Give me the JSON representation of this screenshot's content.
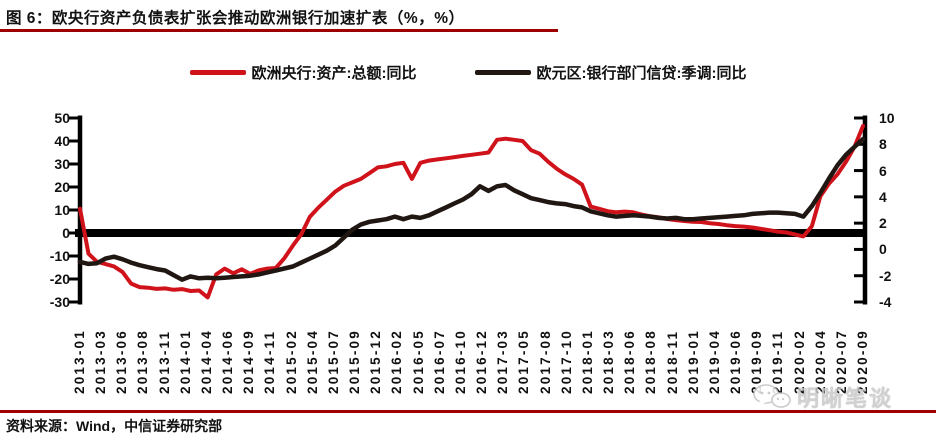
{
  "title": "图 6：欧央行资产负债表扩张会推动欧洲银行加速扩表（%，%）",
  "source": "资料来源：Wind，中信证券研究部",
  "watermark": "明晰笔谈",
  "colors": {
    "accent_rule": "#9e0000",
    "series_red": "#d0121b",
    "series_black": "#201713",
    "zero_line": "#000000",
    "axis": "#000000"
  },
  "legend": {
    "items": [
      {
        "label": "欧洲央行:资产:总额:同比",
        "color": "#d0121b"
      },
      {
        "label": "欧元区:银行部门信贷:季调:同比",
        "color": "#201713"
      }
    ]
  },
  "chart_data": {
    "type": "line",
    "x_start": "2013-01",
    "x_end": "2020-09",
    "frequency": "monthly",
    "n_points": 93,
    "x_tick_labels": [
      "2013-01",
      "2013-03",
      "2013-06",
      "2013-08",
      "2013-11",
      "2014-01",
      "2014-04",
      "2014-06",
      "2014-09",
      "2014-11",
      "2015-02",
      "2015-04",
      "2015-07",
      "2015-09",
      "2015-12",
      "2016-02",
      "2016-05",
      "2016-07",
      "2016-10",
      "2016-12",
      "2017-03",
      "2017-05",
      "2017-08",
      "2017-10",
      "2018-01",
      "2018-03",
      "2018-06",
      "2018-08",
      "2018-11",
      "2019-01",
      "2019-04",
      "2019-06",
      "2019-09",
      "2019-11",
      "2020-02",
      "2020-04",
      "2020-07",
      "2020-09"
    ],
    "left_axis": {
      "max": 50,
      "min": -30,
      "ticks": [
        50,
        40,
        30,
        20,
        10,
        0,
        -10,
        -20,
        -30
      ]
    },
    "right_axis": {
      "max": 10,
      "min": -4,
      "ticks": [
        10,
        8,
        6,
        4,
        2,
        0,
        -2,
        -4
      ]
    },
    "grid": false,
    "legend_position": "top-center",
    "series": [
      {
        "name": "欧洲央行:资产:总额:同比",
        "axis": "left",
        "color": "#d0121b",
        "stroke_width": 4,
        "values": [
          10.5,
          -9,
          -12.5,
          -13.5,
          -14.5,
          -17,
          -22,
          -23.5,
          -23.8,
          -24.3,
          -24.1,
          -24.7,
          -24.4,
          -25.2,
          -25,
          -28,
          -18,
          -15.5,
          -17.5,
          -15.8,
          -17.8,
          -16.2,
          -15.5,
          -15.2,
          -11,
          -5.5,
          -0.5,
          7,
          11,
          14.5,
          18,
          20.5,
          22,
          23.5,
          26,
          28.5,
          29,
          30,
          30.5,
          23.5,
          30.5,
          31.5,
          32,
          32.5,
          33,
          33.5,
          34,
          34.5,
          35,
          40.5,
          41,
          40.5,
          40,
          36,
          34.5,
          31,
          28,
          25.5,
          23.5,
          21,
          11.5,
          10.5,
          9.5,
          9,
          9.3,
          9,
          8,
          7.3,
          6.8,
          6.1,
          5.6,
          5.2,
          4.9,
          4.8,
          4.2,
          3.9,
          3.4,
          3,
          2.8,
          2.4,
          1.8,
          1.2,
          0.6,
          0.2,
          -0.6,
          -1.5,
          3,
          16,
          21.5,
          25.5,
          31,
          37.5,
          46.5
        ]
      },
      {
        "name": "欧元区:银行部门信贷:季调:同比",
        "axis": "right",
        "color": "#201713",
        "stroke_width": 4.5,
        "values": [
          -0.95,
          -1.1,
          -1.05,
          -0.7,
          -0.55,
          -0.75,
          -1.0,
          -1.2,
          -1.35,
          -1.5,
          -1.6,
          -1.95,
          -2.3,
          -2.05,
          -2.2,
          -2.15,
          -2.2,
          -2.15,
          -2.1,
          -2.05,
          -2.0,
          -1.9,
          -1.75,
          -1.6,
          -1.45,
          -1.3,
          -1.0,
          -0.7,
          -0.4,
          -0.1,
          0.3,
          0.9,
          1.5,
          1.9,
          2.1,
          2.2,
          2.3,
          2.5,
          2.3,
          2.5,
          2.4,
          2.6,
          2.9,
          3.2,
          3.5,
          3.8,
          4.2,
          4.8,
          4.45,
          4.8,
          4.9,
          4.5,
          4.2,
          3.9,
          3.75,
          3.6,
          3.5,
          3.45,
          3.3,
          3.2,
          2.9,
          2.75,
          2.6,
          2.5,
          2.55,
          2.6,
          2.55,
          2.5,
          2.4,
          2.35,
          2.4,
          2.3,
          2.3,
          2.35,
          2.4,
          2.45,
          2.5,
          2.55,
          2.6,
          2.7,
          2.75,
          2.8,
          2.8,
          2.75,
          2.7,
          2.5,
          3.3,
          4.3,
          5.4,
          6.4,
          7.2,
          7.8,
          8.4
        ]
      }
    ]
  }
}
